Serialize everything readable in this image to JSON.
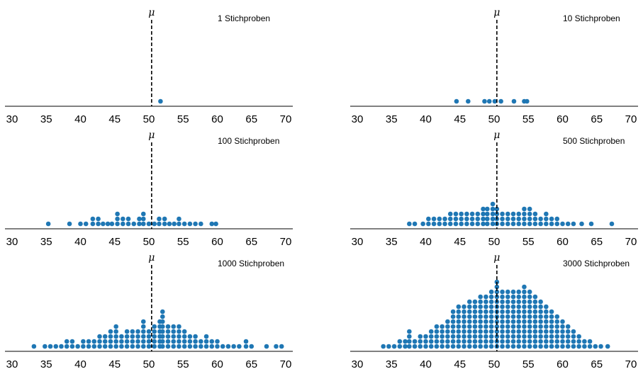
{
  "chart_data": [
    {
      "type": "scatter",
      "title": "1 Stichproben",
      "mean_label": "μ",
      "mean": 50.4,
      "xlim": [
        29.5,
        71.2
      ],
      "xticks": [
        "30",
        "35",
        "40",
        "45",
        "50",
        "55",
        "60",
        "65",
        "70"
      ],
      "marker_color": "#1f77b4",
      "stacks": [
        [
          51.7,
          1
        ]
      ]
    },
    {
      "type": "scatter",
      "title": "10 Stichproben",
      "mean_label": "μ",
      "mean": 50.4,
      "xlim": [
        29.5,
        71.2
      ],
      "xticks": [
        "30",
        "35",
        "40",
        "45",
        "50",
        "55",
        "60",
        "65",
        "70"
      ],
      "marker_color": "#1f77b4",
      "stacks": [
        [
          44.5,
          1
        ],
        [
          46.2,
          1
        ],
        [
          48.6,
          1
        ],
        [
          49.3,
          1
        ],
        [
          50.1,
          1
        ],
        [
          51.0,
          1
        ],
        [
          52.9,
          1
        ],
        [
          54.4,
          1
        ],
        [
          54.8,
          1
        ]
      ]
    },
    {
      "type": "scatter",
      "title": "100 Stichproben",
      "mean_label": "μ",
      "mean": 50.4,
      "xlim": [
        29.5,
        71.2
      ],
      "xticks": [
        "30",
        "35",
        "40",
        "45",
        "50",
        "55",
        "60",
        "65",
        "70"
      ],
      "marker_color": "#1f77b4",
      "stacks": [
        [
          35.3,
          1
        ],
        [
          38.4,
          1
        ],
        [
          40.0,
          1
        ],
        [
          40.8,
          1
        ],
        [
          41.8,
          2
        ],
        [
          42.6,
          2
        ],
        [
          43.3,
          1
        ],
        [
          44.0,
          1
        ],
        [
          44.6,
          1
        ],
        [
          45.4,
          3
        ],
        [
          46.2,
          2
        ],
        [
          47.0,
          2
        ],
        [
          47.8,
          1
        ],
        [
          48.6,
          2
        ],
        [
          49.2,
          3
        ],
        [
          50.0,
          1
        ],
        [
          50.8,
          1
        ],
        [
          51.5,
          2
        ],
        [
          52.3,
          2
        ],
        [
          53.0,
          1
        ],
        [
          53.7,
          1
        ],
        [
          54.4,
          2
        ],
        [
          55.2,
          1
        ],
        [
          56.0,
          1
        ],
        [
          56.8,
          1
        ],
        [
          57.6,
          1
        ],
        [
          59.2,
          1
        ],
        [
          59.8,
          1
        ]
      ]
    },
    {
      "type": "scatter",
      "title": "500 Stichproben",
      "mean_label": "μ",
      "mean": 50.4,
      "xlim": [
        29.5,
        71.2
      ],
      "xticks": [
        "30",
        "35",
        "40",
        "45",
        "50",
        "55",
        "60",
        "65",
        "70"
      ],
      "marker_color": "#1f77b4",
      "stacks": [
        [
          37.6,
          1
        ],
        [
          38.4,
          1
        ],
        [
          39.6,
          1
        ],
        [
          40.4,
          2
        ],
        [
          41.2,
          2
        ],
        [
          42.0,
          2
        ],
        [
          42.8,
          2
        ],
        [
          43.6,
          3
        ],
        [
          44.4,
          3
        ],
        [
          45.2,
          3
        ],
        [
          46.0,
          3
        ],
        [
          46.8,
          3
        ],
        [
          47.6,
          3
        ],
        [
          48.4,
          4
        ],
        [
          49.0,
          4
        ],
        [
          49.8,
          5
        ],
        [
          50.4,
          4
        ],
        [
          51.2,
          3
        ],
        [
          52.0,
          3
        ],
        [
          52.8,
          3
        ],
        [
          53.6,
          3
        ],
        [
          54.4,
          4
        ],
        [
          55.2,
          4
        ],
        [
          56.0,
          3
        ],
        [
          56.8,
          2
        ],
        [
          57.6,
          3
        ],
        [
          58.4,
          2
        ],
        [
          59.2,
          2
        ],
        [
          60.0,
          1
        ],
        [
          60.8,
          1
        ],
        [
          61.6,
          1
        ],
        [
          62.8,
          1
        ],
        [
          64.2,
          1
        ],
        [
          67.2,
          1
        ]
      ]
    },
    {
      "type": "scatter",
      "title": "1000 Stichproben",
      "mean_label": "μ",
      "mean": 50.4,
      "xlim": [
        29.5,
        71.2
      ],
      "xticks": [
        "30",
        "35",
        "40",
        "45",
        "50",
        "55",
        "60",
        "65",
        "70"
      ],
      "marker_color": "#1f77b4",
      "stacks": [
        [
          33.2,
          1
        ],
        [
          34.8,
          1
        ],
        [
          35.6,
          1
        ],
        [
          36.4,
          1
        ],
        [
          37.2,
          1
        ],
        [
          38.0,
          2
        ],
        [
          38.8,
          2
        ],
        [
          39.6,
          1
        ],
        [
          40.4,
          2
        ],
        [
          41.2,
          2
        ],
        [
          42.0,
          2
        ],
        [
          42.8,
          3
        ],
        [
          43.6,
          3
        ],
        [
          44.4,
          4
        ],
        [
          45.2,
          5
        ],
        [
          46.0,
          3
        ],
        [
          46.8,
          4
        ],
        [
          47.6,
          4
        ],
        [
          48.4,
          4
        ],
        [
          49.2,
          6
        ],
        [
          50.0,
          4
        ],
        [
          50.8,
          5
        ],
        [
          51.6,
          6
        ],
        [
          52.0,
          8
        ],
        [
          52.8,
          5
        ],
        [
          53.6,
          5
        ],
        [
          54.4,
          5
        ],
        [
          55.2,
          4
        ],
        [
          56.0,
          3
        ],
        [
          56.8,
          3
        ],
        [
          57.6,
          2
        ],
        [
          58.4,
          3
        ],
        [
          59.2,
          2
        ],
        [
          60.0,
          2
        ],
        [
          60.8,
          1
        ],
        [
          61.6,
          1
        ],
        [
          62.4,
          1
        ],
        [
          63.2,
          1
        ],
        [
          64.2,
          2
        ],
        [
          65.0,
          1
        ],
        [
          67.2,
          1
        ],
        [
          68.6,
          1
        ],
        [
          69.4,
          1
        ]
      ]
    },
    {
      "type": "scatter",
      "title": "3000 Stichproben",
      "mean_label": "μ",
      "mean": 50.4,
      "xlim": [
        29.5,
        71.2
      ],
      "xticks": [
        "30",
        "35",
        "40",
        "45",
        "50",
        "55",
        "60",
        "65",
        "70"
      ],
      "marker_color": "#1f77b4",
      "stacks": [
        [
          33.8,
          1
        ],
        [
          34.6,
          1
        ],
        [
          35.4,
          1
        ],
        [
          36.2,
          2
        ],
        [
          37.0,
          2
        ],
        [
          37.6,
          4
        ],
        [
          38.4,
          2
        ],
        [
          39.2,
          3
        ],
        [
          40.0,
          3
        ],
        [
          40.8,
          4
        ],
        [
          41.6,
          5
        ],
        [
          42.4,
          5
        ],
        [
          43.2,
          6
        ],
        [
          44.0,
          8
        ],
        [
          44.8,
          9
        ],
        [
          45.6,
          9
        ],
        [
          46.4,
          10
        ],
        [
          47.2,
          10
        ],
        [
          48.0,
          11
        ],
        [
          48.8,
          11
        ],
        [
          49.6,
          12
        ],
        [
          50.4,
          14
        ],
        [
          51.2,
          12
        ],
        [
          52.0,
          12
        ],
        [
          52.8,
          12
        ],
        [
          53.6,
          12
        ],
        [
          54.4,
          13
        ],
        [
          55.2,
          12
        ],
        [
          56.0,
          11
        ],
        [
          56.8,
          10
        ],
        [
          57.6,
          9
        ],
        [
          58.4,
          8
        ],
        [
          59.2,
          7
        ],
        [
          60.0,
          6
        ],
        [
          60.8,
          5
        ],
        [
          61.6,
          4
        ],
        [
          62.4,
          3
        ],
        [
          63.2,
          2
        ],
        [
          64.0,
          2
        ],
        [
          64.8,
          1
        ],
        [
          65.6,
          1
        ],
        [
          66.6,
          1
        ]
      ]
    }
  ]
}
